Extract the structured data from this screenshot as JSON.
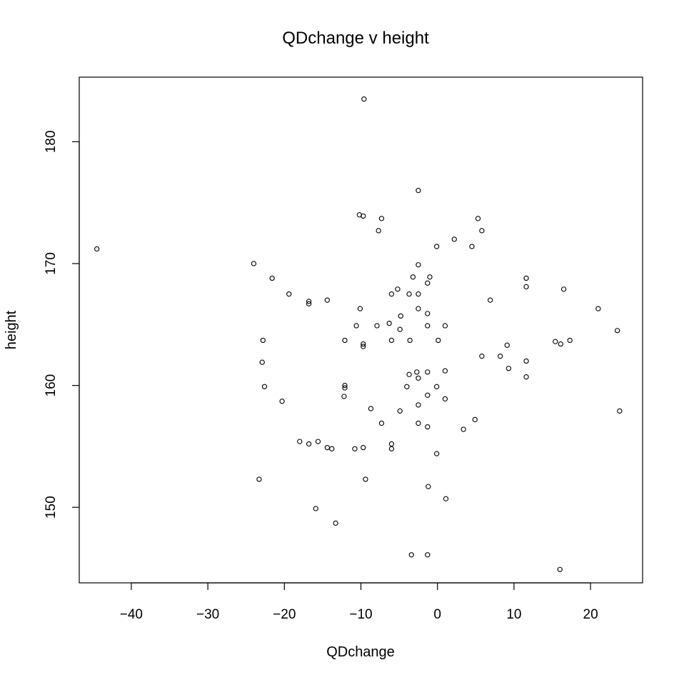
{
  "chart_data": {
    "type": "scatter",
    "title": "QDchange v height",
    "xlabel": "QDchange",
    "ylabel": "height",
    "xlim": [
      -46.8,
      26.8
    ],
    "ylim": [
      143.8,
      185.3
    ],
    "xticks": [
      -40,
      -30,
      -20,
      -10,
      0,
      10,
      20
    ],
    "yticks": [
      150,
      160,
      170,
      180
    ],
    "xtick_labels": [
      "−40",
      "−30",
      "−20",
      "−10",
      "0",
      "10",
      "20"
    ],
    "ytick_labels": [
      "150",
      "160",
      "170",
      "180"
    ],
    "grid": false,
    "colors": {
      "points": "#000000",
      "frame": "#000000",
      "background": "#ffffff"
    },
    "points": [
      {
        "x": -44.5,
        "y": 171.2
      },
      {
        "x": -9.6,
        "y": 183.5
      },
      {
        "x": -2.5,
        "y": 176.0
      },
      {
        "x": -10.2,
        "y": 174.0
      },
      {
        "x": -9.7,
        "y": 173.9
      },
      {
        "x": -7.3,
        "y": 173.7
      },
      {
        "x": 5.3,
        "y": 173.7
      },
      {
        "x": -7.7,
        "y": 172.7
      },
      {
        "x": 5.8,
        "y": 172.7
      },
      {
        "x": 2.2,
        "y": 172.0
      },
      {
        "x": -0.1,
        "y": 171.4
      },
      {
        "x": 4.5,
        "y": 171.4
      },
      {
        "x": -24.0,
        "y": 170.0
      },
      {
        "x": -2.5,
        "y": 169.9
      },
      {
        "x": -21.6,
        "y": 168.8
      },
      {
        "x": -3.2,
        "y": 168.9
      },
      {
        "x": -1.0,
        "y": 168.9
      },
      {
        "x": 11.6,
        "y": 168.8
      },
      {
        "x": -1.3,
        "y": 168.4
      },
      {
        "x": 11.6,
        "y": 168.1
      },
      {
        "x": 16.5,
        "y": 167.9
      },
      {
        "x": -5.2,
        "y": 167.9
      },
      {
        "x": -19.4,
        "y": 167.5
      },
      {
        "x": -6.0,
        "y": 167.5
      },
      {
        "x": -3.7,
        "y": 167.5
      },
      {
        "x": -2.5,
        "y": 167.5
      },
      {
        "x": -16.8,
        "y": 166.9
      },
      {
        "x": -14.4,
        "y": 167.0
      },
      {
        "x": 6.9,
        "y": 167.0
      },
      {
        "x": -16.8,
        "y": 166.7
      },
      {
        "x": -10.1,
        "y": 166.3
      },
      {
        "x": -2.5,
        "y": 166.3
      },
      {
        "x": 21.0,
        "y": 166.3
      },
      {
        "x": -1.3,
        "y": 165.9
      },
      {
        "x": -4.8,
        "y": 165.7
      },
      {
        "x": -6.3,
        "y": 165.1
      },
      {
        "x": -10.6,
        "y": 164.9
      },
      {
        "x": -7.9,
        "y": 164.9
      },
      {
        "x": -1.3,
        "y": 164.9
      },
      {
        "x": 1.0,
        "y": 164.9
      },
      {
        "x": -4.9,
        "y": 164.6
      },
      {
        "x": 23.5,
        "y": 164.5
      },
      {
        "x": -22.8,
        "y": 163.7
      },
      {
        "x": -12.1,
        "y": 163.7
      },
      {
        "x": -6.0,
        "y": 163.7
      },
      {
        "x": -3.6,
        "y": 163.7
      },
      {
        "x": 0.1,
        "y": 163.7
      },
      {
        "x": 15.4,
        "y": 163.6
      },
      {
        "x": 17.3,
        "y": 163.7
      },
      {
        "x": -9.7,
        "y": 163.4
      },
      {
        "x": 16.1,
        "y": 163.4
      },
      {
        "x": -9.7,
        "y": 163.2
      },
      {
        "x": 9.1,
        "y": 163.3
      },
      {
        "x": 5.8,
        "y": 162.4
      },
      {
        "x": 8.2,
        "y": 162.4
      },
      {
        "x": -22.9,
        "y": 161.9
      },
      {
        "x": 11.6,
        "y": 162.0
      },
      {
        "x": 9.3,
        "y": 161.4
      },
      {
        "x": -2.7,
        "y": 161.1
      },
      {
        "x": -1.3,
        "y": 161.1
      },
      {
        "x": 1.0,
        "y": 161.2
      },
      {
        "x": -3.7,
        "y": 160.9
      },
      {
        "x": -2.5,
        "y": 160.6
      },
      {
        "x": 11.6,
        "y": 160.7
      },
      {
        "x": -22.6,
        "y": 159.9
      },
      {
        "x": -12.1,
        "y": 160.0
      },
      {
        "x": -12.1,
        "y": 159.8
      },
      {
        "x": -4.0,
        "y": 159.9
      },
      {
        "x": -0.1,
        "y": 159.9
      },
      {
        "x": -1.3,
        "y": 159.2
      },
      {
        "x": -12.2,
        "y": 159.1
      },
      {
        "x": 1.0,
        "y": 158.9
      },
      {
        "x": -20.3,
        "y": 158.7
      },
      {
        "x": -2.5,
        "y": 158.4
      },
      {
        "x": -8.7,
        "y": 158.1
      },
      {
        "x": -4.9,
        "y": 157.9
      },
      {
        "x": 23.8,
        "y": 157.9
      },
      {
        "x": 4.9,
        "y": 157.2
      },
      {
        "x": -7.3,
        "y": 156.9
      },
      {
        "x": -2.5,
        "y": 156.9
      },
      {
        "x": -1.3,
        "y": 156.6
      },
      {
        "x": 3.4,
        "y": 156.4
      },
      {
        "x": -18.0,
        "y": 155.4
      },
      {
        "x": -15.6,
        "y": 155.4
      },
      {
        "x": -16.8,
        "y": 155.2
      },
      {
        "x": -6.0,
        "y": 155.2
      },
      {
        "x": -14.4,
        "y": 154.9
      },
      {
        "x": -13.8,
        "y": 154.8
      },
      {
        "x": -10.8,
        "y": 154.8
      },
      {
        "x": -9.7,
        "y": 154.9
      },
      {
        "x": -6.0,
        "y": 154.8
      },
      {
        "x": -0.1,
        "y": 154.4
      },
      {
        "x": -23.3,
        "y": 152.3
      },
      {
        "x": -9.4,
        "y": 152.3
      },
      {
        "x": -1.2,
        "y": 151.7
      },
      {
        "x": 1.1,
        "y": 150.7
      },
      {
        "x": -15.9,
        "y": 149.9
      },
      {
        "x": -13.3,
        "y": 148.7
      },
      {
        "x": -3.4,
        "y": 146.1
      },
      {
        "x": -1.3,
        "y": 146.1
      },
      {
        "x": 16.0,
        "y": 144.9
      }
    ]
  }
}
